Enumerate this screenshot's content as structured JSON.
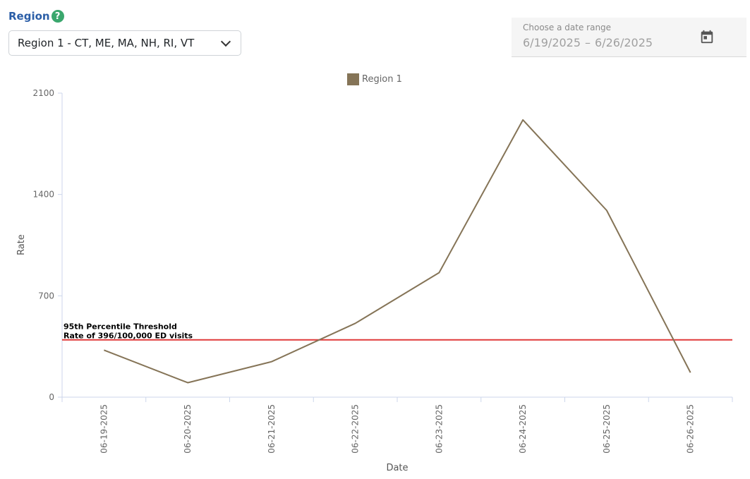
{
  "filter": {
    "region_label": "Region",
    "help_icon": "question-circle-icon",
    "selected_region": "Region 1 - CT, ME, MA, NH, RI, VT"
  },
  "date_range": {
    "label": "Choose a date range",
    "start": "6/19/2025",
    "end": "6/26/2025",
    "separator": "–",
    "icon": "calendar-icon"
  },
  "chart_data": {
    "type": "line",
    "xlabel": "Date",
    "ylabel": "Rate",
    "ylim": [
      0,
      2100
    ],
    "yticks": [
      0,
      700,
      1400,
      2100
    ],
    "x": [
      "06-19-2025",
      "06-20-2025",
      "06-21-2025",
      "06-22-2025",
      "06-23-2025",
      "06-24-2025",
      "06-25-2025",
      "06-26-2025"
    ],
    "series": [
      {
        "name": "Region 1",
        "color": "#857457",
        "values": [
          325,
          100,
          245,
          510,
          860,
          1915,
          1290,
          170
        ]
      }
    ],
    "threshold": {
      "value": 396,
      "color": "#e03a3a",
      "label_line1": "95th Percentile Threshold",
      "label_line2": "Rate of 396/100,000 ED visits"
    },
    "legend_position": "top-center",
    "grid": false
  }
}
